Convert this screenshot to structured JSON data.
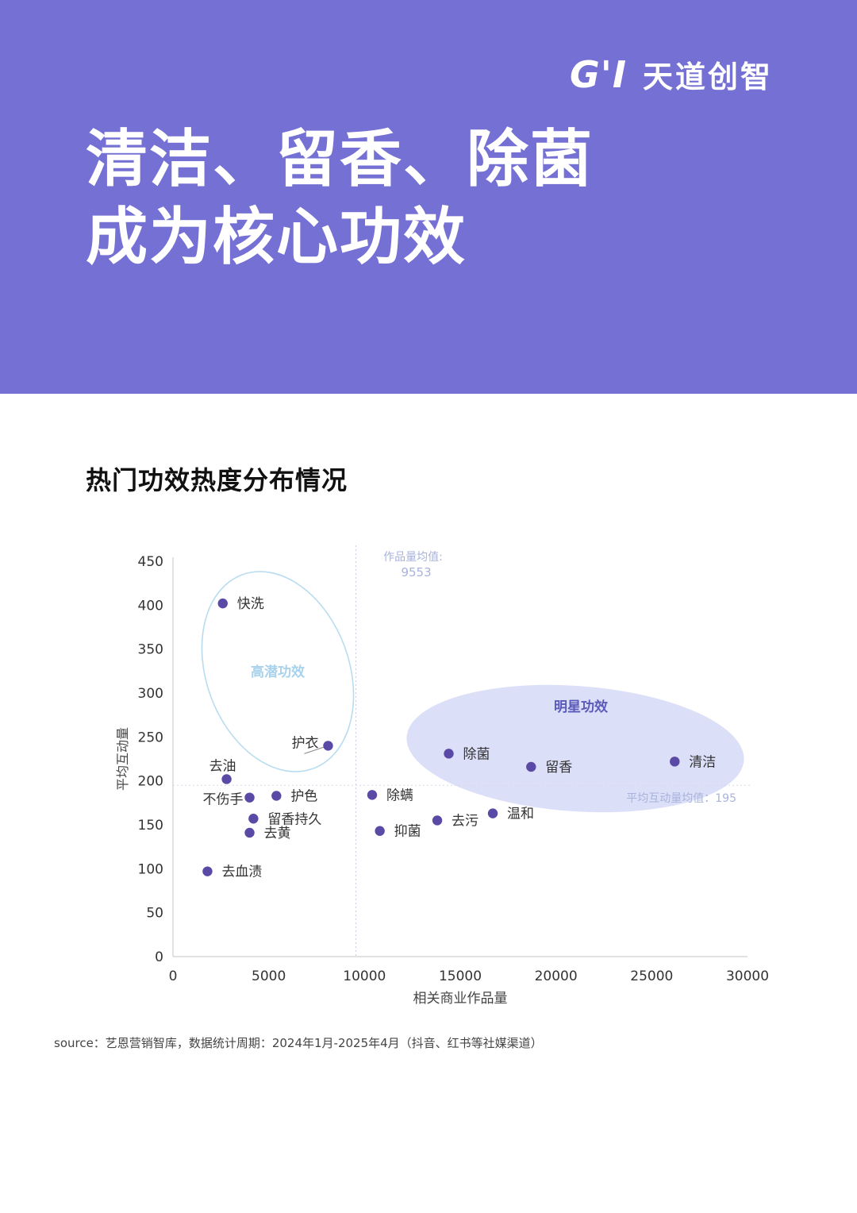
{
  "header": {
    "brand_mark": "G'I",
    "brand_name": "天道创智",
    "title_line1": "清洁、留香、除菌",
    "title_line2": "成为核心功效"
  },
  "section": {
    "title": "热门功效热度分布情况"
  },
  "colors": {
    "hero_bg": "#7570d4",
    "point": "#5a4aa6",
    "highlight_ellipse_stroke": "#b8dcf0",
    "highlight_ellipse_text": "#a8d2ec",
    "star_ellipse_fill": "#d8dcf7",
    "star_ellipse_text": "#5a5ab8",
    "mean_label": "#a8b3dc"
  },
  "chart_data": {
    "type": "scatter",
    "xlabel": "相关商业作品量",
    "ylabel": "平均互动量",
    "xlim": [
      0,
      30000
    ],
    "ylim": [
      0,
      450
    ],
    "x_ticks": [
      "0",
      "5000",
      "10000",
      "15000",
      "20000",
      "25000",
      "30000"
    ],
    "y_ticks": [
      "0",
      "50",
      "100",
      "150",
      "200",
      "250",
      "300",
      "350",
      "400",
      "450"
    ],
    "points": [
      {
        "label": "快洗",
        "x": 2600,
        "y": 402
      },
      {
        "label": "护衣",
        "x": 8100,
        "y": 240
      },
      {
        "label": "去油",
        "x": 2800,
        "y": 202
      },
      {
        "label": "不伤手",
        "x": 4000,
        "y": 181
      },
      {
        "label": "护色",
        "x": 5400,
        "y": 183
      },
      {
        "label": "留香持久",
        "x": 4200,
        "y": 157
      },
      {
        "label": "去黄",
        "x": 4000,
        "y": 141
      },
      {
        "label": "去血渍",
        "x": 1800,
        "y": 97
      },
      {
        "label": "除螨",
        "x": 10400,
        "y": 184
      },
      {
        "label": "抑菌",
        "x": 10800,
        "y": 143
      },
      {
        "label": "去污",
        "x": 13800,
        "y": 155
      },
      {
        "label": "温和",
        "x": 16700,
        "y": 163
      },
      {
        "label": "除菌",
        "x": 14400,
        "y": 231
      },
      {
        "label": "留香",
        "x": 18700,
        "y": 216
      },
      {
        "label": "清洁",
        "x": 26200,
        "y": 222
      }
    ],
    "x_mean": {
      "label_line1": "作品量均值:",
      "label_line2": "9553",
      "value": 9553
    },
    "y_mean": {
      "label": "平均互动量均值：195",
      "value": 195
    },
    "groups": [
      {
        "name": "高潜功效"
      },
      {
        "name": "明星功效"
      }
    ]
  },
  "source": "source：艺恩营销智库，数据统计周期：2024年1月-2025年4月（抖音、红书等社媒渠道）"
}
